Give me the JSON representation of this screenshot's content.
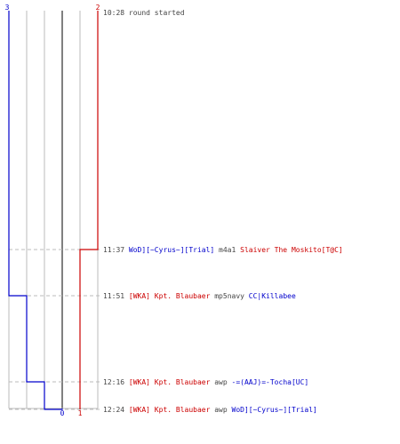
{
  "colors": {
    "team_a": "#0000cc",
    "team_b": "#cc0000",
    "grid": "#bbbbbb",
    "axis_center": "#808080",
    "event_line": "#bbbbbb",
    "text": "#444444"
  },
  "axis": {
    "top_left_label": "3",
    "top_right_label": "2",
    "bottom_center_label": "0",
    "bottom_right_label": "1"
  },
  "events": [
    {
      "time": "10:28",
      "parts": [
        {
          "text": "round started",
          "team": "neutral"
        }
      ]
    },
    {
      "time": "11:37",
      "parts": [
        {
          "text": "WoD][~Cyrus~][Trial]",
          "team": "a"
        },
        {
          "text": " m4a1 ",
          "team": "neutral"
        },
        {
          "text": "Slaiver The Moskito[T@C]",
          "team": "b"
        }
      ]
    },
    {
      "time": "11:51",
      "parts": [
        {
          "text": "[WKA] Kpt. Blaubaer",
          "team": "b"
        },
        {
          "text": " mp5navy ",
          "team": "neutral"
        },
        {
          "text": "CC|Killabee",
          "team": "a"
        }
      ]
    },
    {
      "time": "12:16",
      "parts": [
        {
          "text": "[WKA] Kpt. Blaubaer",
          "team": "b"
        },
        {
          "text": " awp ",
          "team": "neutral"
        },
        {
          "text": "-=(AAJ)=-Tocha[UC]",
          "team": "a"
        }
      ]
    },
    {
      "time": "12:24",
      "parts": [
        {
          "text": "[WKA] Kpt. Blaubaer",
          "team": "b"
        },
        {
          "text": " awp ",
          "team": "neutral"
        },
        {
          "text": "WoD][~Cyrus~][Trial]",
          "team": "a"
        }
      ]
    }
  ],
  "players_alive": {
    "team_a": [
      3,
      3,
      2,
      1,
      0
    ],
    "team_b": [
      2,
      1,
      1,
      1,
      1
    ]
  }
}
